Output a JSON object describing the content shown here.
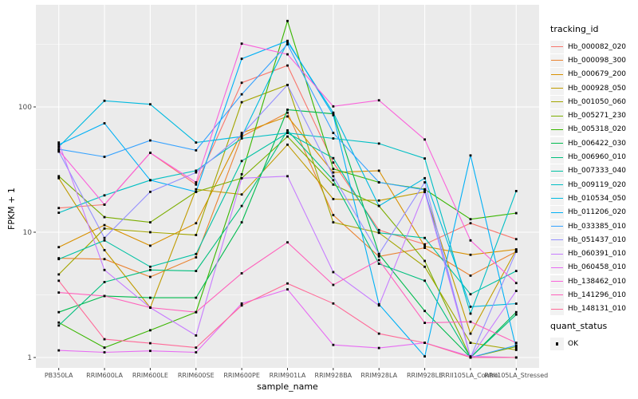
{
  "figure": {
    "background": "#FFFFFF",
    "panel_background": "#EBEBEB",
    "gridline_color": "#FFFFFF",
    "axis_text_color": "#4D4D4D",
    "axis_title_color": "#000000",
    "point_color": "#000000",
    "legend_key_background": "#F2F2F2"
  },
  "chart_data": {
    "type": "line",
    "title": "",
    "xlabel": "sample_name",
    "ylabel": "FPKM + 1",
    "y_scale": "log10",
    "ylim": [
      0.85,
      620
    ],
    "y_major_ticks": [
      1,
      10,
      100
    ],
    "y_minor_gridlines": [
      3.162,
      31.62,
      316.2
    ],
    "grid": true,
    "point_marker": "square",
    "legend_position": "right",
    "legend_title": "tracking_id",
    "categories": [
      "PB350LA",
      "RRIM600LA",
      "RRIM600LE",
      "RRIM600SE",
      "RRIM600PE",
      "RRIM901LA",
      "RRIM928BA",
      "RRIM928LA",
      "RRIM928LE",
      "RRII105LA_Control",
      "RRII105LA_Stressed"
    ],
    "series": [
      {
        "name": "Hb_000082_020",
        "color": "#F8766D",
        "values": [
          15.6,
          16.6,
          43,
          24,
          156,
          214,
          36,
          10.4,
          8.0,
          11.8,
          8.8
        ]
      },
      {
        "name": "Hb_000098_300",
        "color": "#EA8331",
        "values": [
          6.2,
          6.1,
          4.4,
          6.3,
          58,
          90,
          13.7,
          6.4,
          7.5,
          4.5,
          7.0
        ]
      },
      {
        "name": "Hb_000679_200",
        "color": "#D89000",
        "values": [
          7.6,
          11.4,
          7.8,
          11.8,
          62,
          84,
          30,
          31,
          7.7,
          6.6,
          7.3
        ]
      },
      {
        "name": "Hb_000928_050",
        "color": "#C09B00",
        "values": [
          27,
          7.2,
          2.5,
          22,
          20,
          50,
          18.4,
          17.9,
          21,
          1.55,
          7.25
        ]
      },
      {
        "name": "Hb_001050_060",
        "color": "#A3A500",
        "values": [
          4.6,
          10.7,
          10,
          9.5,
          109,
          150,
          12,
          9.9,
          5.3,
          1.31,
          1.15
        ]
      },
      {
        "name": "Hb_005271_230",
        "color": "#7CAE00",
        "values": [
          28,
          13.2,
          12,
          21,
          27,
          58,
          24,
          16.2,
          5.9,
          1.0,
          1.22
        ]
      },
      {
        "name": "Hb_005318_020",
        "color": "#39B600",
        "values": [
          1.9,
          1.2,
          1.65,
          2.3,
          29,
          485,
          32,
          25,
          22,
          12.7,
          14.2
        ]
      },
      {
        "name": "Hb_006422_030",
        "color": "#00BB4E",
        "values": [
          2.3,
          3.1,
          3.0,
          3.0,
          12,
          95,
          88,
          6.7,
          2.35,
          1.0,
          2.3
        ]
      },
      {
        "name": "Hb_006960_010",
        "color": "#00BF7D",
        "values": [
          1.8,
          4.0,
          5.0,
          4.9,
          16.2,
          65,
          26,
          5.6,
          4.1,
          1.0,
          2.2
        ]
      },
      {
        "name": "Hb_007333_040",
        "color": "#00C1A3",
        "values": [
          6.1,
          8.6,
          5.3,
          6.7,
          37,
          62,
          39,
          9.9,
          9.0,
          3.2,
          4.9
        ]
      },
      {
        "name": "Hb_009119_020",
        "color": "#00BFC4",
        "values": [
          14.3,
          19.7,
          26,
          31,
          56,
          62,
          56,
          51,
          38.8,
          2.24,
          21.3
        ]
      },
      {
        "name": "Hb_010534_050",
        "color": "#00BAE0",
        "values": [
          48,
          112,
          105,
          52,
          58,
          330,
          90,
          16.2,
          27,
          2.54,
          2.69
        ]
      },
      {
        "name": "Hb_011206_020",
        "color": "#00B0F6",
        "values": [
          50,
          74,
          26,
          21,
          242,
          337,
          86,
          2.66,
          1.02,
          41,
          1.18
        ]
      },
      {
        "name": "Hb_033385_010",
        "color": "#35A2FF",
        "values": [
          46,
          40,
          54,
          45,
          126,
          316,
          62,
          25,
          21.8,
          1.0,
          1.25
        ]
      },
      {
        "name": "Hb_051437_010",
        "color": "#9590FF",
        "values": [
          44,
          9.0,
          21,
          30,
          60,
          150,
          28,
          6.7,
          25,
          1.0,
          7.0
        ]
      },
      {
        "name": "Hb_060391_010",
        "color": "#C77CFF",
        "values": [
          52,
          5.0,
          2.5,
          1.5,
          27,
          28,
          4.8,
          2.6,
          21,
          1.0,
          3.4
        ]
      },
      {
        "name": "Hb_060458_010",
        "color": "#E76BF3",
        "values": [
          1.14,
          1.1,
          1.13,
          1.1,
          2.7,
          3.5,
          1.26,
          1.19,
          1.31,
          1.02,
          1.0
        ]
      },
      {
        "name": "Hb_138462_010",
        "color": "#FA62DB",
        "values": [
          45,
          16.6,
          43,
          25,
          320,
          263,
          101,
          113,
          55,
          8.6,
          3.93
        ]
      },
      {
        "name": "Hb_141296_010",
        "color": "#FF62BC",
        "values": [
          3.3,
          3.1,
          2.5,
          2.3,
          4.7,
          8.3,
          3.8,
          6.0,
          1.89,
          1.93,
          1.31
        ]
      },
      {
        "name": "Hb_148131_010",
        "color": "#FF6A98",
        "values": [
          4.1,
          1.4,
          1.3,
          1.2,
          2.6,
          3.9,
          2.7,
          1.55,
          1.31,
          1.0,
          1.0
        ]
      }
    ],
    "quant_status_legend": {
      "title": "quant_status",
      "items": [
        {
          "label": "OK",
          "marker": "black-square"
        }
      ]
    }
  }
}
